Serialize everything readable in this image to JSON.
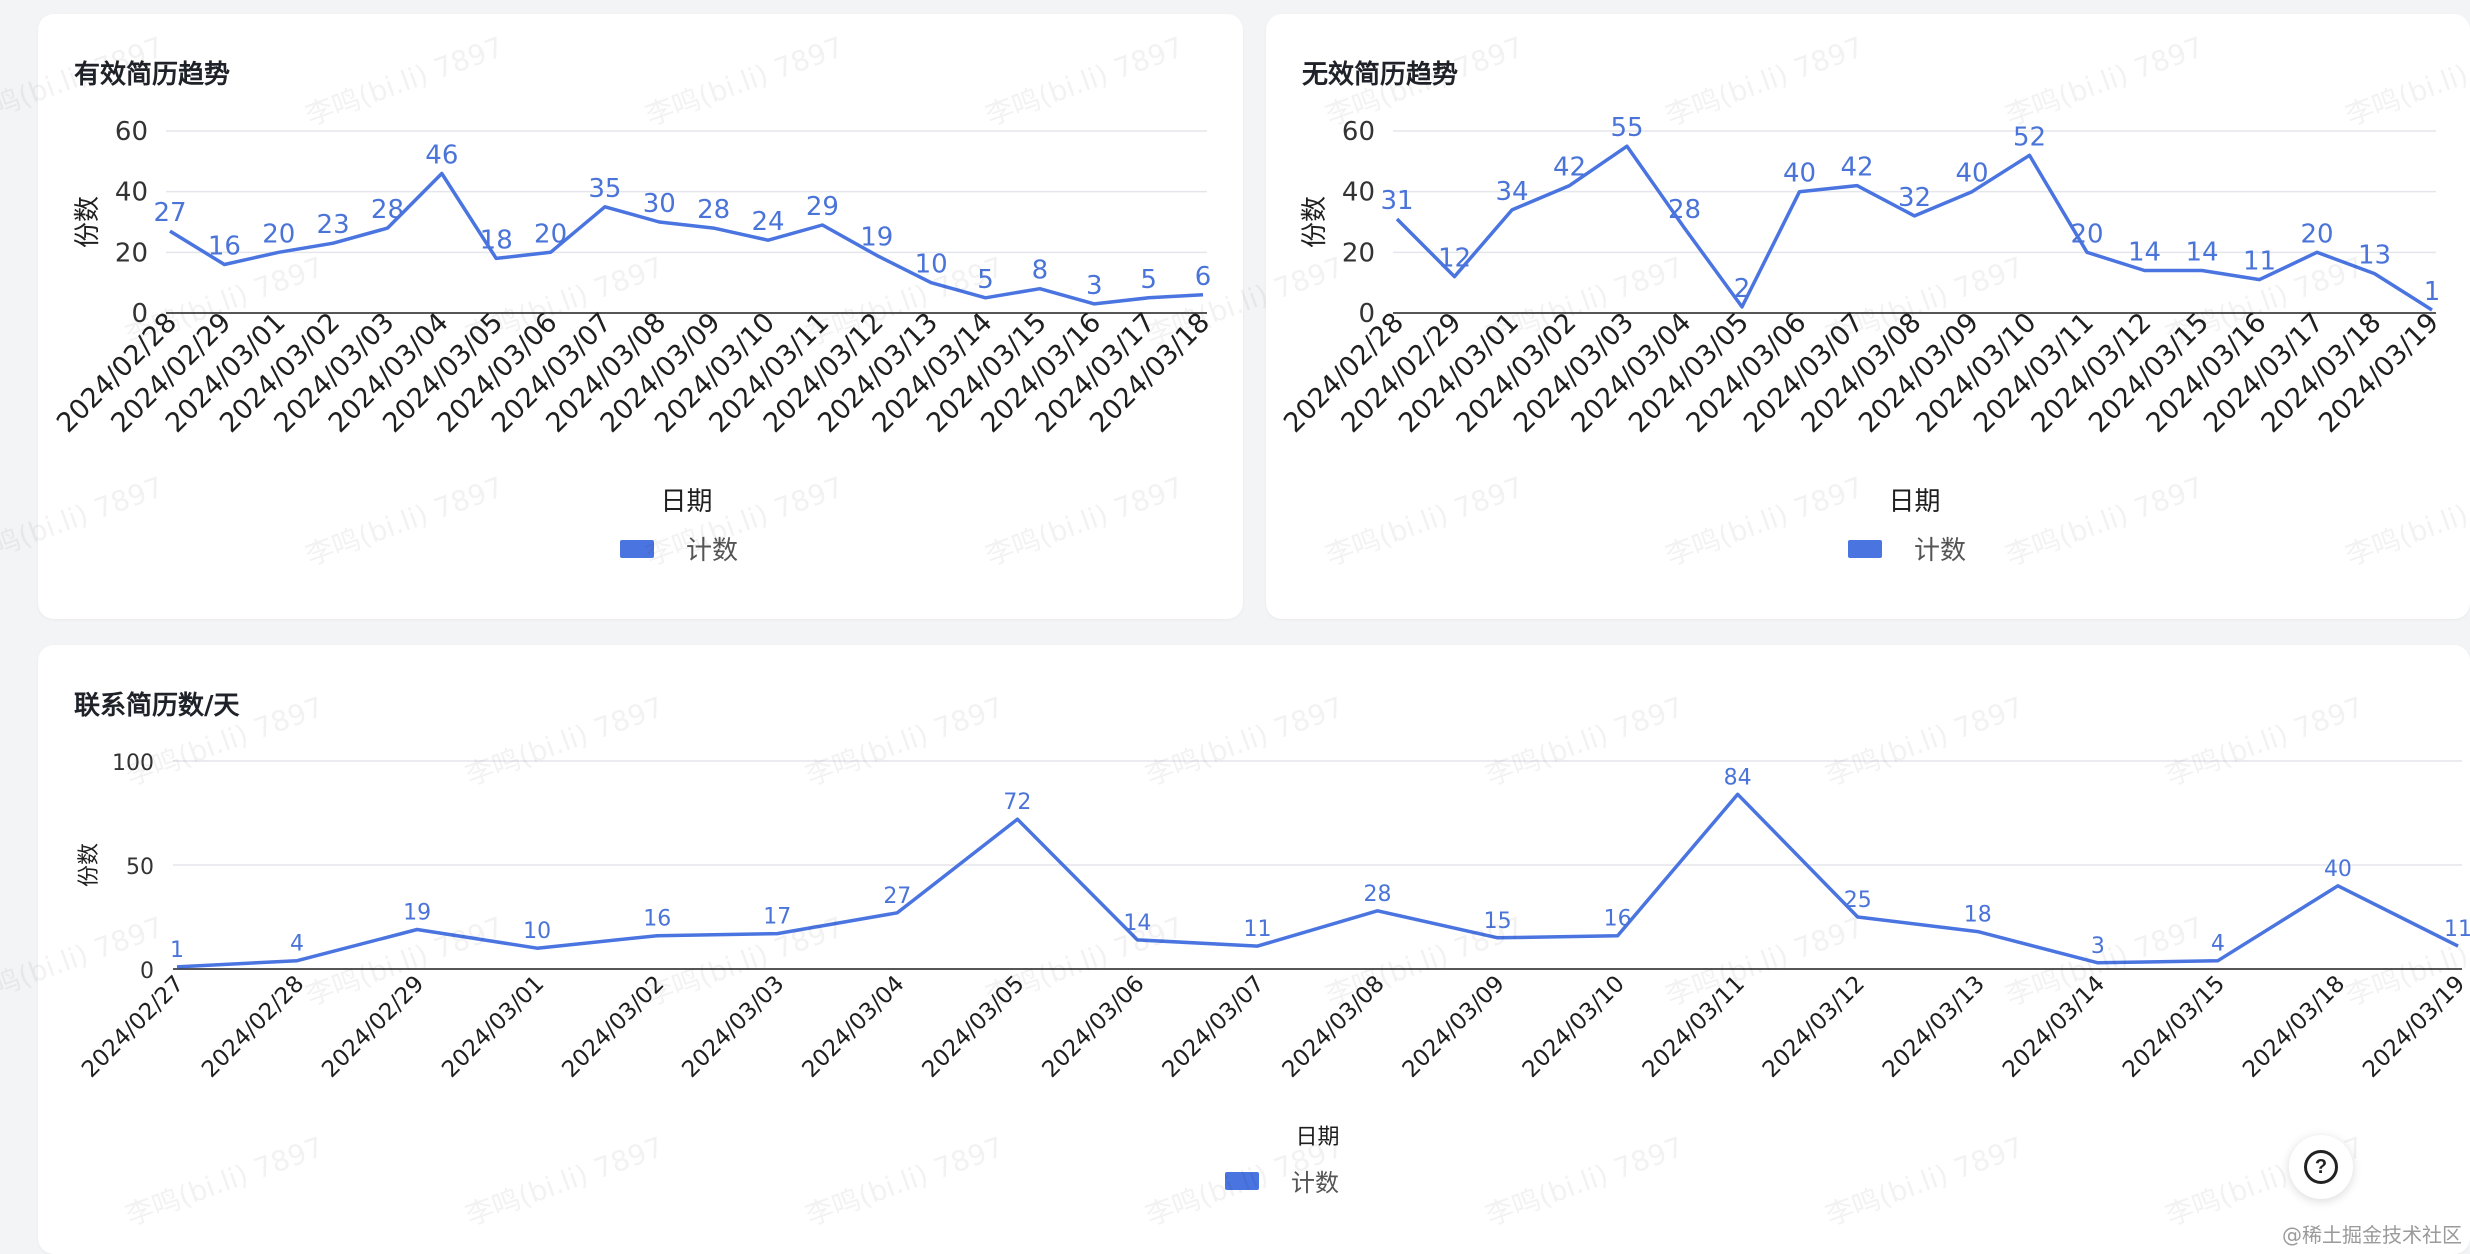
{
  "watermark_text": "李鸣(bi.li) 7897",
  "help_label": "?",
  "credit": "@稀土掘金技术社区",
  "chart_data": [
    {
      "type": "line",
      "title": "有效简历趋势",
      "xlabel": "日期",
      "ylabel": "份数",
      "ylim": [
        0,
        60
      ],
      "yticks": [
        0,
        20,
        40,
        60
      ],
      "legend": "bottom",
      "grid": true,
      "categories": [
        "2024/02/28",
        "2024/02/29",
        "2024/03/01",
        "2024/03/02",
        "2024/03/03",
        "2024/03/04",
        "2024/03/05",
        "2024/03/06",
        "2024/03/07",
        "2024/03/08",
        "2024/03/09",
        "2024/03/10",
        "2024/03/11",
        "2024/03/12",
        "2024/03/13",
        "2024/03/14",
        "2024/03/15",
        "2024/03/16",
        "2024/03/17",
        "2024/03/18"
      ],
      "series": [
        {
          "name": "计数",
          "values": [
            27,
            16,
            20,
            23,
            28,
            46,
            18,
            20,
            35,
            30,
            28,
            24,
            29,
            19,
            10,
            5,
            8,
            3,
            5,
            6
          ]
        }
      ]
    },
    {
      "type": "line",
      "title": "无效简历趋势",
      "xlabel": "日期",
      "ylabel": "份数",
      "ylim": [
        0,
        60
      ],
      "yticks": [
        0,
        20,
        40,
        60
      ],
      "legend": "bottom",
      "grid": true,
      "categories": [
        "2024/02/28",
        "2024/02/29",
        "2024/03/01",
        "2024/03/02",
        "2024/03/03",
        "2024/03/04",
        "2024/03/05",
        "2024/03/06",
        "2024/03/07",
        "2024/03/08",
        "2024/03/09",
        "2024/03/10",
        "2024/03/11",
        "2024/03/12",
        "2024/03/15",
        "2024/03/16",
        "2024/03/17",
        "2024/03/18",
        "2024/03/19"
      ],
      "series": [
        {
          "name": "计数",
          "values": [
            31,
            12,
            34,
            42,
            55,
            28,
            2,
            40,
            42,
            32,
            40,
            52,
            20,
            14,
            14,
            11,
            20,
            13,
            1
          ]
        }
      ]
    },
    {
      "type": "line",
      "title": "联系简历数/天",
      "xlabel": "日期",
      "ylabel": "份数",
      "ylim": [
        0,
        100
      ],
      "yticks": [
        0,
        50,
        100
      ],
      "legend": "bottom",
      "grid": true,
      "categories": [
        "2024/02/27",
        "2024/02/28",
        "2024/02/29",
        "2024/03/01",
        "2024/03/02",
        "2024/03/03",
        "2024/03/04",
        "2024/03/05",
        "2024/03/06",
        "2024/03/07",
        "2024/03/08",
        "2024/03/09",
        "2024/03/10",
        "2024/03/11",
        "2024/03/12",
        "2024/03/13",
        "2024/03/14",
        "2024/03/15",
        "2024/03/18",
        "2024/03/19"
      ],
      "series": [
        {
          "name": "计数",
          "values": [
            1,
            4,
            19,
            10,
            16,
            17,
            27,
            72,
            14,
            11,
            28,
            15,
            16,
            84,
            25,
            18,
            3,
            4,
            40,
            11
          ]
        }
      ]
    }
  ]
}
